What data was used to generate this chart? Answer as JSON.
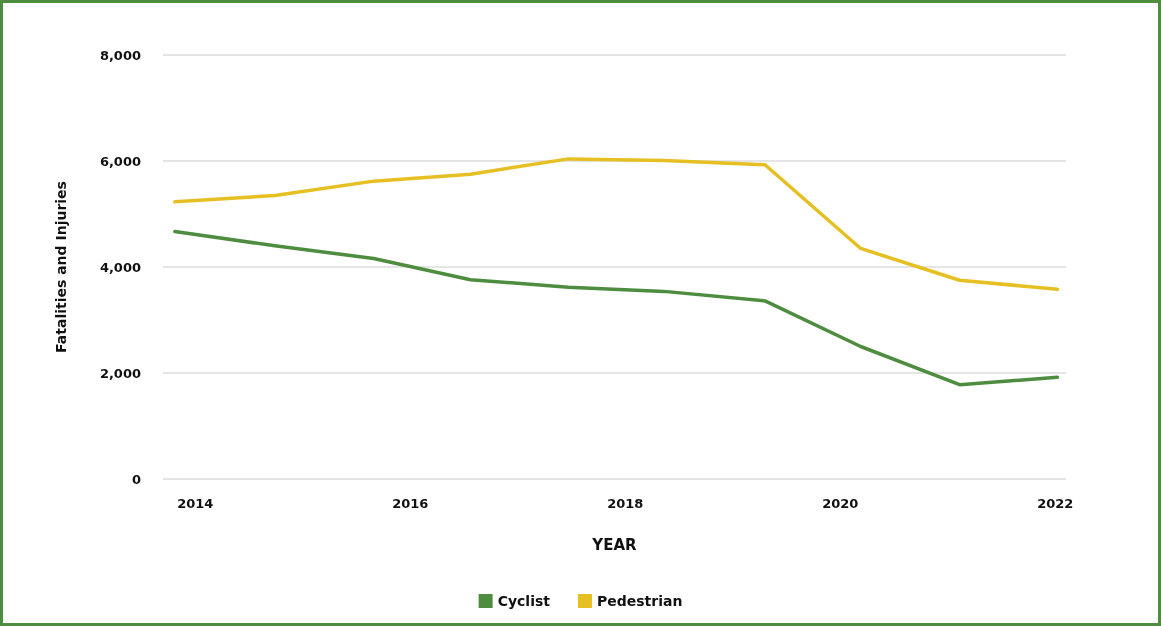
{
  "chart_data": {
    "type": "line",
    "xlabel": "YEAR",
    "ylabel": "Fatalities and Injuries",
    "x": [
      2013.81,
      2014.74,
      2015.66,
      2016.56,
      2017.47,
      2018.36,
      2019.3,
      2020.19,
      2021.11,
      2022.02
    ],
    "series": [
      {
        "name": "Cyclist",
        "color": "#4e8c3f",
        "values": [
          4670,
          4400,
          4160,
          3760,
          3620,
          3540,
          3360,
          2500,
          1780,
          1920
        ]
      },
      {
        "name": "Pedestrian",
        "color": "#e6bf22",
        "values": [
          5230,
          5350,
          5620,
          5750,
          6040,
          6010,
          5930,
          4350,
          3750,
          3580
        ]
      }
    ],
    "xlim": [
      2013.7,
      2022.1
    ],
    "xticks": [
      2014,
      2016,
      2018,
      2020,
      2022
    ],
    "ylim": [
      0,
      8000
    ],
    "yticks": [
      {
        "value": 0,
        "label": "0"
      },
      {
        "value": 2000,
        "label": "2,000"
      },
      {
        "value": 4000,
        "label": "4,000"
      },
      {
        "value": 6000,
        "label": "6,000"
      },
      {
        "value": 8000,
        "label": "8,000"
      }
    ],
    "grid": "y",
    "legend": "bottom",
    "marker": "none",
    "line_style": "solid"
  }
}
